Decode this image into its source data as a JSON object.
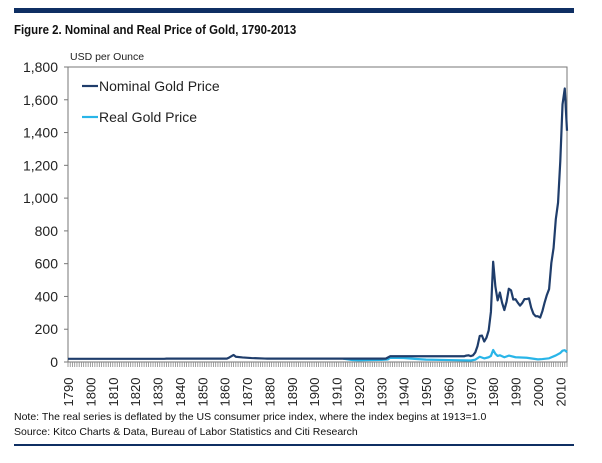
{
  "title": "Figure 2. Nominal and Real Price of Gold, 1790-2013",
  "note": "Note: The real series is deflated by the US consumer price index, where the index begins at 1913=1.0",
  "source": "Source: Kitco Charts & Data, Bureau of Labor Statistics and Citi Research",
  "chart_data": {
    "type": "line",
    "title": "Figure 2. Nominal and Real Price of Gold, 1790-2013",
    "ylabel": "USD per Ounce",
    "xlabel": "",
    "xlim": [
      1790,
      2013
    ],
    "ylim": [
      0,
      1800
    ],
    "yticks": [
      "0",
      "200",
      "400",
      "600",
      "800",
      "1,000",
      "1,200",
      "1,400",
      "1,600",
      "1,800"
    ],
    "xticks": [
      "1790",
      "1800",
      "1810",
      "1820",
      "1830",
      "1840",
      "1850",
      "1860",
      "1870",
      "1880",
      "1890",
      "1900",
      "1910",
      "1920",
      "1930",
      "1940",
      "1950",
      "1960",
      "1970",
      "1980",
      "1990",
      "2000",
      "2010"
    ],
    "legend": "top-left",
    "grid": false,
    "series": [
      {
        "name": "Nominal Gold Price",
        "color": "#1f3d6b",
        "points": [
          [
            1790,
            19.39
          ],
          [
            1833,
            19.39
          ],
          [
            1834,
            20.67
          ],
          [
            1861,
            20.67
          ],
          [
            1862,
            27
          ],
          [
            1864,
            43
          ],
          [
            1865,
            32
          ],
          [
            1868,
            28
          ],
          [
            1872,
            24
          ],
          [
            1878,
            21
          ],
          [
            1879,
            20.67
          ],
          [
            1932,
            20.67
          ],
          [
            1934,
            35
          ],
          [
            1967,
            35
          ],
          [
            1968,
            39
          ],
          [
            1969,
            41
          ],
          [
            1970,
            36
          ],
          [
            1971,
            41
          ],
          [
            1972,
            58
          ],
          [
            1973,
            97
          ],
          [
            1974,
            159
          ],
          [
            1975,
            161
          ],
          [
            1976,
            125
          ],
          [
            1977,
            148
          ],
          [
            1978,
            193
          ],
          [
            1979,
            306
          ],
          [
            1980,
            612
          ],
          [
            1981,
            460
          ],
          [
            1982,
            376
          ],
          [
            1983,
            424
          ],
          [
            1984,
            361
          ],
          [
            1985,
            317
          ],
          [
            1986,
            368
          ],
          [
            1987,
            447
          ],
          [
            1988,
            437
          ],
          [
            1989,
            381
          ],
          [
            1990,
            383
          ],
          [
            1991,
            362
          ],
          [
            1992,
            344
          ],
          [
            1993,
            360
          ],
          [
            1994,
            384
          ],
          [
            1995,
            384
          ],
          [
            1996,
            388
          ],
          [
            1997,
            331
          ],
          [
            1998,
            294
          ],
          [
            1999,
            279
          ],
          [
            2000,
            279
          ],
          [
            2001,
            271
          ],
          [
            2002,
            310
          ],
          [
            2003,
            363
          ],
          [
            2004,
            409
          ],
          [
            2005,
            445
          ],
          [
            2006,
            604
          ],
          [
            2007,
            696
          ],
          [
            2008,
            872
          ],
          [
            2009,
            972
          ],
          [
            2010,
            1225
          ],
          [
            2011,
            1572
          ],
          [
            2012,
            1669
          ],
          [
            2013,
            1411
          ]
        ]
      },
      {
        "name": "Real Gold Price",
        "color": "#29b5e8",
        "points": [
          [
            1913,
            20.67
          ],
          [
            1917,
            12
          ],
          [
            1920,
            10.3
          ],
          [
            1925,
            12
          ],
          [
            1930,
            12.5
          ],
          [
            1933,
            16
          ],
          [
            1934,
            25.7
          ],
          [
            1940,
            24.5
          ],
          [
            1945,
            19
          ],
          [
            1950,
            14.4
          ],
          [
            1960,
            11.7
          ],
          [
            1970,
            9.2
          ],
          [
            1972,
            14
          ],
          [
            1974,
            32
          ],
          [
            1976,
            22
          ],
          [
            1978,
            29
          ],
          [
            1979,
            37
          ],
          [
            1980,
            73.5
          ],
          [
            1981,
            50
          ],
          [
            1982,
            37
          ],
          [
            1983,
            41
          ],
          [
            1985,
            29
          ],
          [
            1987,
            39
          ],
          [
            1990,
            29
          ],
          [
            1995,
            26
          ],
          [
            2000,
            16
          ],
          [
            2002,
            18
          ],
          [
            2005,
            22.6
          ],
          [
            2008,
            40
          ],
          [
            2010,
            55
          ],
          [
            2011,
            69
          ],
          [
            2012,
            72
          ],
          [
            2013,
            60
          ]
        ]
      }
    ]
  }
}
